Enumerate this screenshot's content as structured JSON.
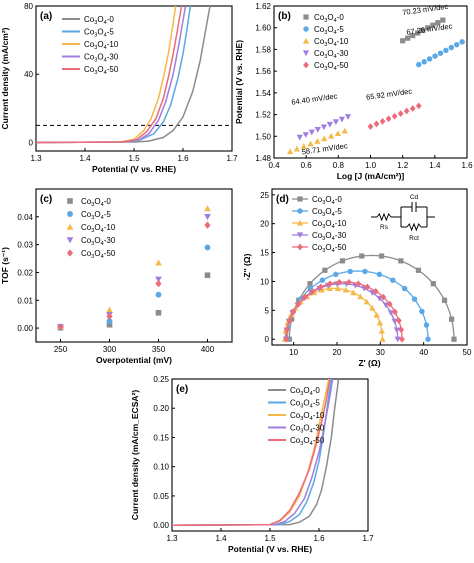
{
  "colors": {
    "Co3O4-0": "#8c8c8c",
    "Co3O4-5": "#5aa8e6",
    "Co3O4-10": "#f5b94a",
    "Co3O4-30": "#a07de0",
    "Co3O4-50": "#ec6b78"
  },
  "chart_data": [
    {
      "panel": "(a)",
      "type": "line",
      "xlabel": "Potential (V vs. RHE)",
      "ylabel": "Current density (mA/cm²)",
      "xlim": [
        1.3,
        1.7
      ],
      "ylim": [
        -5,
        80
      ],
      "xticks": [
        "1.3",
        "1.4",
        "1.5",
        "1.6",
        "1.7"
      ],
      "yticks": [
        "0",
        "40",
        "80"
      ],
      "ytick_values": [
        0,
        40,
        80
      ],
      "reference_line_y": 10,
      "legend": "top-left",
      "series": [
        {
          "name": "Co3O4-0",
          "sub": "4",
          "label_suffix": "-0",
          "x": [
            1.3,
            1.5,
            1.53,
            1.56,
            1.58,
            1.6,
            1.62,
            1.635,
            1.645,
            1.655
          ],
          "y": [
            0,
            0.3,
            0.8,
            3,
            7,
            15,
            30,
            48,
            64,
            80
          ]
        },
        {
          "name": "Co3O4-5",
          "sub": "4",
          "label_suffix": "-5",
          "x": [
            1.3,
            1.48,
            1.51,
            1.54,
            1.56,
            1.575,
            1.59,
            1.6,
            1.608,
            1.615
          ],
          "y": [
            0,
            0.3,
            1.2,
            5,
            12,
            22,
            38,
            52,
            66,
            80
          ]
        },
        {
          "name": "Co3O4-10",
          "sub": "4",
          "label_suffix": "-10",
          "x": [
            1.3,
            1.47,
            1.5,
            1.52,
            1.535,
            1.55,
            1.56,
            1.57,
            1.58,
            1.585
          ],
          "y": [
            0,
            0.3,
            1.8,
            7,
            14,
            26,
            38,
            52,
            70,
            80
          ]
        },
        {
          "name": "Co3O4-30",
          "sub": "4",
          "label_suffix": "-30",
          "x": [
            1.3,
            1.48,
            1.51,
            1.53,
            1.55,
            1.565,
            1.58,
            1.59,
            1.598,
            1.605
          ],
          "y": [
            0,
            0.3,
            1.5,
            5,
            13,
            24,
            40,
            55,
            68,
            80
          ]
        },
        {
          "name": "Co3O4-50",
          "sub": "4",
          "label_suffix": "-50",
          "x": [
            1.3,
            1.475,
            1.505,
            1.525,
            1.545,
            1.56,
            1.57,
            1.58,
            1.59,
            1.597
          ],
          "y": [
            0,
            0.3,
            1.6,
            6,
            14,
            26,
            38,
            52,
            68,
            80
          ]
        }
      ]
    },
    {
      "panel": "(b)",
      "type": "scatter",
      "xlabel": "Log [J (mA/cm²)]",
      "ylabel": "Potential (V vs. RHE)",
      "xlim": [
        0.4,
        1.6
      ],
      "ylim": [
        1.48,
        1.62
      ],
      "xticks": [
        "0.4",
        "0.6",
        "0.8",
        "1.0",
        "1.2",
        "1.4",
        "1.6"
      ],
      "yticks": [
        "1.48",
        "1.50",
        "1.52",
        "1.54",
        "1.56",
        "1.58",
        "1.60",
        "1.62"
      ],
      "legend": "top-left",
      "annotations": [
        "70.23 mV/dec",
        "67.26 mV/dec",
        "64.40 mV/dec",
        "65.92 mV/dec",
        "58.71 mV/dec"
      ],
      "series": [
        {
          "name": "Co3O4-0",
          "label_suffix": "-0",
          "marker": "square",
          "x_range": [
            1.2,
            1.45
          ],
          "y_range": [
            1.588,
            1.607
          ],
          "annotation": "70.23 mV/dec"
        },
        {
          "name": "Co3O4-5",
          "label_suffix": "-5",
          "marker": "circle",
          "x_range": [
            1.3,
            1.57
          ],
          "y_range": [
            1.566,
            1.587
          ],
          "annotation": "67.26 mV/dec"
        },
        {
          "name": "Co3O4-10",
          "label_suffix": "-10",
          "marker": "triangle-up",
          "x_range": [
            0.5,
            0.84
          ],
          "y_range": [
            1.486,
            1.505
          ],
          "annotation": "58.71 mV/dec"
        },
        {
          "name": "Co3O4-30",
          "label_suffix": "-30",
          "marker": "triangle-down",
          "x_range": [
            0.56,
            0.86
          ],
          "y_range": [
            1.499,
            1.518
          ],
          "annotation": "64.40 mV/dec"
        },
        {
          "name": "Co3O4-50",
          "label_suffix": "-50",
          "marker": "diamond",
          "x_range": [
            1.0,
            1.3
          ],
          "y_range": [
            1.509,
            1.528
          ],
          "annotation": "65.92 mV/dec"
        }
      ]
    },
    {
      "panel": "(c)",
      "type": "scatter",
      "xlabel": "Overpotential (mV)",
      "ylabel": "TOF (s⁻¹)",
      "xlim": [
        225,
        425
      ],
      "ylim": [
        -0.005,
        0.05
      ],
      "xticks": [
        "250",
        "300",
        "350",
        "400"
      ],
      "xtick_values": [
        250,
        300,
        350,
        400
      ],
      "yticks": [
        "0.00",
        "0.01",
        "0.02",
        "0.03",
        "0.04"
      ],
      "ytick_values": [
        0,
        0.01,
        0.02,
        0.03,
        0.04
      ],
      "legend": "top-left",
      "x": [
        250,
        300,
        350,
        400
      ],
      "series": [
        {
          "name": "Co3O4-0",
          "label_suffix": "-0",
          "marker": "square",
          "values": [
            0.0001,
            0.0012,
            0.0055,
            0.019
          ]
        },
        {
          "name": "Co3O4-5",
          "label_suffix": "-5",
          "marker": "circle",
          "values": [
            0.0002,
            0.0025,
            0.012,
            0.029
          ]
        },
        {
          "name": "Co3O4-10",
          "label_suffix": "-10",
          "marker": "triangle-up",
          "values": [
            0.0007,
            0.0065,
            0.0235,
            0.043
          ]
        },
        {
          "name": "Co3O4-30",
          "label_suffix": "-30",
          "marker": "triangle-down",
          "values": [
            0.0004,
            0.0048,
            0.0175,
            0.04
          ]
        },
        {
          "name": "Co3O4-50",
          "label_suffix": "-50",
          "marker": "diamond",
          "values": [
            0.0004,
            0.0042,
            0.016,
            0.037
          ]
        }
      ]
    },
    {
      "panel": "(d)",
      "type": "scatter",
      "xlabel": "Z' (Ω)",
      "ylabel": "-Z'' (Ω)",
      "xlim": [
        5,
        50
      ],
      "ylim": [
        -1,
        26
      ],
      "xticks": [
        "10",
        "20",
        "30",
        "40",
        "50"
      ],
      "xtick_values": [
        10,
        20,
        30,
        40,
        50
      ],
      "yticks": [
        "0",
        "5",
        "10",
        "15",
        "20",
        "25"
      ],
      "ytick_values": [
        0,
        5,
        10,
        15,
        20,
        25
      ],
      "legend": "top-left",
      "circuit_labels": [
        "Rs",
        "Cd",
        "Rct"
      ],
      "series": [
        {
          "name": "Co3O4-0",
          "label_suffix": "-0",
          "marker": "square",
          "x0": 9.0,
          "x1": 47.0,
          "peak": 14.5,
          "points": 14
        },
        {
          "name": "Co3O4-5",
          "label_suffix": "-5",
          "marker": "circle",
          "x0": 8.5,
          "x1": 41.0,
          "peak": 11.8,
          "points": 16
        },
        {
          "name": "Co3O4-10",
          "label_suffix": "-10",
          "marker": "triangle-up",
          "x0": 8.0,
          "x1": 30.5,
          "peak": 8.8,
          "points": 20
        },
        {
          "name": "Co3O4-30",
          "label_suffix": "-30",
          "marker": "triangle-down",
          "x0": 8.2,
          "x1": 34.0,
          "peak": 9.6,
          "points": 20
        },
        {
          "name": "Co3O4-50",
          "label_suffix": "-50",
          "marker": "diamond",
          "x0": 8.3,
          "x1": 35.0,
          "peak": 9.9,
          "points": 20
        }
      ]
    },
    {
      "panel": "(e)",
      "type": "line",
      "xlabel": "Potential (V vs. RHE)",
      "ylabel": "Current density (mA/cm_ECSA²)",
      "xlim": [
        1.3,
        1.7
      ],
      "ylim": [
        -0.01,
        0.25
      ],
      "xticks": [
        "1.3",
        "1.4",
        "1.5",
        "1.6",
        "1.7"
      ],
      "yticks": [
        "0.00",
        "0.05",
        "0.10",
        "0.15",
        "0.20",
        "0.25"
      ],
      "ytick_values": [
        0,
        0.05,
        0.1,
        0.15,
        0.2,
        0.25
      ],
      "legend": "top-right",
      "series": [
        {
          "name": "Co3O4-0",
          "label_suffix": "-0",
          "x": [
            1.3,
            1.54,
            1.56,
            1.58,
            1.595,
            1.605,
            1.615,
            1.625,
            1.632,
            1.64
          ],
          "y": [
            0,
            0.001,
            0.005,
            0.015,
            0.035,
            0.06,
            0.1,
            0.15,
            0.2,
            0.25
          ]
        },
        {
          "name": "Co3O4-5",
          "label_suffix": "-5",
          "x": [
            1.3,
            1.52,
            1.54,
            1.56,
            1.575,
            1.59,
            1.6,
            1.61,
            1.618,
            1.625
          ],
          "y": [
            0,
            0.001,
            0.006,
            0.018,
            0.04,
            0.075,
            0.11,
            0.16,
            0.21,
            0.25
          ]
        },
        {
          "name": "Co3O4-10",
          "label_suffix": "-10",
          "x": [
            1.3,
            1.5,
            1.52,
            1.54,
            1.56,
            1.575,
            1.59,
            1.6,
            1.61,
            1.62
          ],
          "y": [
            0,
            0.001,
            0.007,
            0.022,
            0.05,
            0.085,
            0.13,
            0.17,
            0.21,
            0.25
          ]
        },
        {
          "name": "Co3O4-30",
          "label_suffix": "-30",
          "x": [
            1.3,
            1.51,
            1.53,
            1.55,
            1.57,
            1.585,
            1.6,
            1.61,
            1.62,
            1.628
          ],
          "y": [
            0,
            0.001,
            0.006,
            0.02,
            0.045,
            0.08,
            0.125,
            0.165,
            0.21,
            0.25
          ]
        },
        {
          "name": "Co3O4-50",
          "label_suffix": "-50",
          "x": [
            1.3,
            1.5,
            1.52,
            1.54,
            1.56,
            1.58,
            1.595,
            1.605,
            1.615,
            1.622
          ],
          "y": [
            0,
            0.001,
            0.008,
            0.025,
            0.055,
            0.095,
            0.14,
            0.175,
            0.215,
            0.25
          ]
        }
      ]
    }
  ]
}
